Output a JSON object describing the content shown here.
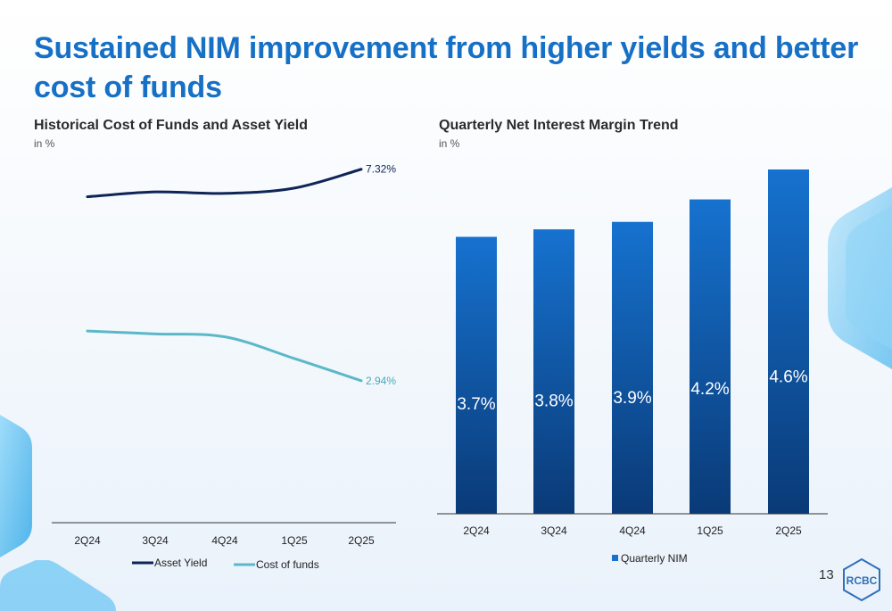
{
  "page": {
    "title": "Sustained NIM improvement from higher yields and better cost of funds",
    "page_number": "13",
    "logo_text": "RCBC",
    "colors": {
      "title": "#1670c6",
      "asset_yield": "#0f2557",
      "cost_of_funds": "#5bb8c9",
      "bar_top": "#1672cf",
      "bar_bottom": "#0a3a77"
    }
  },
  "chart_data": [
    {
      "type": "line",
      "title": "Historical Cost of Funds and Asset Yield",
      "subtitle": "in %",
      "categories": [
        "2Q24",
        "3Q24",
        "4Q24",
        "1Q25",
        "2Q25"
      ],
      "series": [
        {
          "name": "Asset Yield",
          "values": [
            6.75,
            6.85,
            6.82,
            6.93,
            7.32
          ],
          "end_label": "7.32%"
        },
        {
          "name": "Cost of funds",
          "values": [
            3.97,
            3.91,
            3.85,
            3.4,
            2.94
          ],
          "end_label": "2.94%"
        }
      ],
      "ylim": [
        0,
        7.5
      ],
      "grid": false,
      "legend": "bottom"
    },
    {
      "type": "bar",
      "title": "Quarterly Net Interest Margin Trend",
      "subtitle": "in %",
      "categories": [
        "2Q24",
        "3Q24",
        "4Q24",
        "1Q25",
        "2Q25"
      ],
      "series": [
        {
          "name": "Quarterly NIM",
          "values": [
            3.7,
            3.8,
            3.9,
            4.2,
            4.6
          ],
          "labels": [
            "3.7%",
            "3.8%",
            "3.9%",
            "4.2%",
            "4.6%"
          ]
        }
      ],
      "ylim": [
        0,
        4.6
      ],
      "grid": false,
      "legend": "bottom"
    }
  ]
}
